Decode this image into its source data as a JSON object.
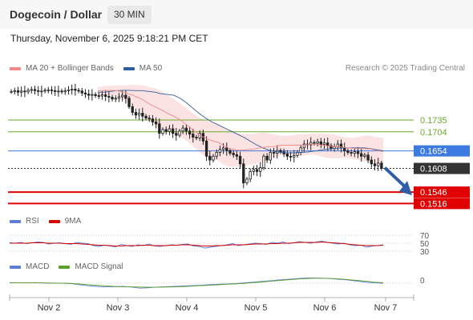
{
  "header": {
    "title": "Dogecoin / Dollar",
    "timeframe": "30 MIN",
    "datetime": "Thursday, November 6, 2025 9:18:21 PM CET"
  },
  "price_panel": {
    "legend": [
      {
        "label": "MA 20 + Bollinger Bands",
        "color": "#f08a8a"
      },
      {
        "label": "MA 50",
        "color": "#2f5d9e"
      }
    ],
    "credit": "Research © 2025 Trading Central",
    "levels": [
      {
        "value": "0.1735",
        "color": "#6aaa2a",
        "style": "line"
      },
      {
        "value": "0.1704",
        "color": "#6aaa2a",
        "style": "line"
      },
      {
        "value": "0.1654",
        "color": "#3d7be0",
        "style": "tag"
      },
      {
        "value": "0.1608",
        "color": "#333333",
        "style": "tag"
      },
      {
        "value": "0.1546",
        "color": "#e00000",
        "style": "tag"
      },
      {
        "value": "0.1516",
        "color": "#e00000",
        "style": "tag"
      }
    ]
  },
  "rsi_panel": {
    "legend": [
      {
        "label": "RSI",
        "color": "#5b7fd6"
      },
      {
        "label": "9MA",
        "color": "#d40000"
      }
    ],
    "levels": [
      "70",
      "50",
      "30"
    ]
  },
  "macd_panel": {
    "legend": [
      {
        "label": "MACD",
        "color": "#5b7fd6"
      },
      {
        "label": "MACD Signal",
        "color": "#5aa02a"
      }
    ],
    "levels": [
      "0"
    ]
  },
  "x_axis": [
    "Nov 2",
    "Nov 3",
    "Nov 4",
    "Nov 5",
    "Nov 6",
    "Nov 7"
  ],
  "chart_data": {
    "type": "candlestick",
    "title": "Dogecoin / Dollar",
    "timeframe": "30 MIN",
    "x_ticks": [
      "Nov 2",
      "Nov 3",
      "Nov 4",
      "Nov 5",
      "Nov 6",
      "Nov 7"
    ],
    "ylim": [
      0.15,
      0.184
    ],
    "close": [
      0.181,
      0.1812,
      0.1808,
      0.1811,
      0.1809,
      0.1813,
      0.1815,
      0.1812,
      0.181,
      0.1811,
      0.1813,
      0.1814,
      0.1812,
      0.181,
      0.1811,
      0.1809,
      0.1812,
      0.1814,
      0.1816,
      0.1813,
      0.1811,
      0.1806,
      0.1803,
      0.18,
      0.1802,
      0.1799,
      0.1798,
      0.1801,
      0.1797,
      0.1795,
      0.179,
      0.1792,
      0.1796,
      0.18,
      0.1792,
      0.177,
      0.1755,
      0.1748,
      0.1753,
      0.1745,
      0.174,
      0.1738,
      0.173,
      0.1725,
      0.17,
      0.171,
      0.1705,
      0.1712,
      0.17,
      0.1695,
      0.1706,
      0.1714,
      0.1706,
      0.1698,
      0.169,
      0.1688,
      0.17,
      0.168,
      0.164,
      0.163,
      0.164,
      0.165,
      0.1658,
      0.1662,
      0.1655,
      0.1648,
      0.1644,
      0.164,
      0.162,
      0.157,
      0.158,
      0.16,
      0.1605,
      0.16,
      0.161,
      0.164,
      0.163,
      0.165,
      0.1648,
      0.1655,
      0.1652,
      0.1646,
      0.164,
      0.1638,
      0.1642,
      0.165,
      0.1662,
      0.1672,
      0.167,
      0.1676,
      0.1674,
      0.1678,
      0.1671,
      0.1675,
      0.1668,
      0.166,
      0.1665,
      0.1672,
      0.1662,
      0.1654,
      0.165,
      0.1648,
      0.1652,
      0.1647,
      0.164,
      0.1643,
      0.163,
      0.162,
      0.1615,
      0.1622,
      0.1608
    ],
    "ma20_band_upper": [
      0.1822,
      0.1824,
      0.1825,
      0.1826,
      0.1826,
      0.1827,
      0.1827,
      0.1826,
      0.1822,
      0.1818,
      0.1812,
      0.18,
      0.179,
      0.1778,
      0.1765,
      0.1752,
      0.1742,
      0.1735,
      0.173,
      0.1724,
      0.1716,
      0.1706,
      0.17,
      0.1698,
      0.1698,
      0.17,
      0.1702,
      0.17,
      0.1696,
      0.1694,
      0.1694,
      0.1696,
      0.1698,
      0.1698,
      0.17,
      0.17,
      0.1699,
      0.1698,
      0.1694,
      0.169,
      0.1688,
      0.169,
      0.1694,
      0.1694,
      0.169,
      0.1688
    ],
    "ma20_band_lower": [
      0.18,
      0.1801,
      0.18,
      0.1798,
      0.179,
      0.1779,
      0.1766,
      0.1752,
      0.1735,
      0.1722,
      0.1712,
      0.1705,
      0.17,
      0.1693,
      0.168,
      0.1666,
      0.165,
      0.164,
      0.1632,
      0.1628,
      0.1616,
      0.1612,
      0.1612,
      0.1614,
      0.1618,
      0.162,
      0.1624,
      0.163,
      0.1636,
      0.1644,
      0.1644,
      0.1642,
      0.1641,
      0.1643,
      0.1645,
      0.164,
      0.1636,
      0.1634,
      0.1635,
      0.1636,
      0.1634,
      0.163,
      0.1626,
      0.1624,
      0.162,
      0.1616
    ],
    "ma50": [
      0.1808,
      0.1808,
      0.181,
      0.1812,
      0.1813,
      0.1813,
      0.1812,
      0.1812,
      0.181,
      0.1808,
      0.1804,
      0.1802,
      0.18,
      0.1792,
      0.178,
      0.1766,
      0.1752,
      0.174,
      0.173,
      0.1722,
      0.1714,
      0.1706,
      0.1698,
      0.169,
      0.168,
      0.167,
      0.1662,
      0.1656,
      0.1652,
      0.165,
      0.1649,
      0.1649,
      0.165,
      0.1651,
      0.1653,
      0.1656,
      0.1658,
      0.166,
      0.1661,
      0.1662,
      0.1662,
      0.1662,
      0.1662,
      0.166,
      0.1657,
      0.1654
    ],
    "rsi": [
      51,
      50,
      52,
      49,
      51,
      53,
      52,
      48,
      50,
      51,
      49,
      47,
      52,
      50,
      49,
      44,
      42,
      45,
      43,
      41,
      47,
      44,
      42,
      46,
      44,
      48,
      43,
      42,
      44,
      46,
      45,
      47,
      48,
      43,
      42,
      38,
      40,
      42,
      44,
      46,
      49,
      44,
      46,
      48,
      50,
      49,
      47,
      52,
      50,
      53,
      49,
      51,
      54,
      52,
      50,
      53,
      55,
      52,
      50,
      48,
      50,
      46,
      44,
      45,
      40,
      43,
      44,
      46
    ],
    "rsi_ma9": [
      50,
      50,
      50,
      50,
      51,
      51,
      51,
      50,
      50,
      50,
      49,
      49,
      49,
      48,
      47,
      46,
      45,
      45,
      44,
      43,
      43,
      44,
      44,
      44,
      45,
      45,
      44,
      44,
      44,
      45,
      45,
      46,
      46,
      45,
      44,
      43,
      43,
      44,
      44,
      45,
      46,
      46,
      46,
      47,
      48,
      48,
      48,
      49,
      49,
      50,
      50,
      51,
      52,
      52,
      52,
      52,
      53,
      52,
      51,
      50,
      49,
      47,
      46,
      45,
      44,
      44,
      44,
      45
    ],
    "macd": [
      0.3,
      0.2,
      0.2,
      0.3,
      0.1,
      0.0,
      0.0,
      -0.2,
      -0.8,
      -1.4,
      -1.8,
      -2.1,
      -2.0,
      -1.8,
      -2.2,
      -2.8,
      -2.6,
      -2.2,
      -2.0,
      -1.8,
      -1.6,
      -1.4,
      -1.2,
      -0.8,
      -0.6,
      -0.4,
      -0.2,
      0.2,
      0.6,
      1.0,
      1.4,
      1.8,
      2.2,
      2.6,
      2.9,
      3.0,
      2.8,
      2.6,
      2.2,
      1.8,
      1.2,
      0.6,
      0.2,
      0.0
    ],
    "macd_signal": [
      0.2,
      0.2,
      0.2,
      0.2,
      0.2,
      0.1,
      0.0,
      -0.1,
      -0.4,
      -0.8,
      -1.2,
      -1.5,
      -1.8,
      -2.0,
      -2.1,
      -2.2,
      -2.3,
      -2.3,
      -2.2,
      -2.1,
      -1.9,
      -1.7,
      -1.4,
      -1.2,
      -0.9,
      -0.6,
      -0.4,
      -0.1,
      0.3,
      0.7,
      1.1,
      1.5,
      1.9,
      2.3,
      2.6,
      2.8,
      2.8,
      2.7,
      2.4,
      2.0,
      1.6,
      1.1,
      0.6,
      0.3
    ]
  }
}
